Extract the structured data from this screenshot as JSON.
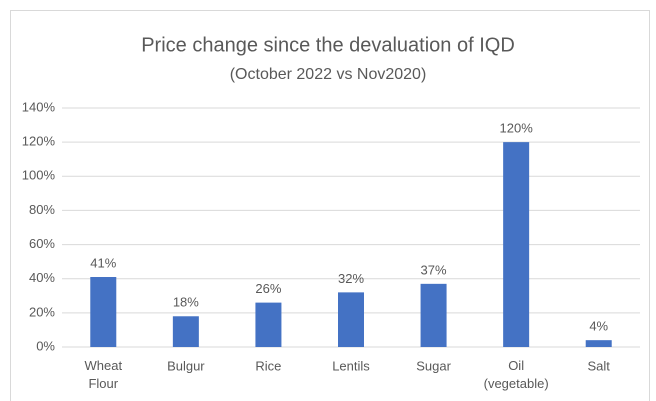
{
  "chart_data": {
    "type": "bar",
    "title": "Price change since the devaluation of IQD",
    "subtitle": "(October 2022 vs Nov2020)",
    "categories": [
      "Wheat Flour",
      "Bulgur",
      "Rice",
      "Lentils",
      "Sugar",
      "Oil (vegetable)",
      "Salt"
    ],
    "values": [
      41,
      18,
      26,
      32,
      37,
      120,
      4
    ],
    "value_labels": [
      "41%",
      "18%",
      "26%",
      "32%",
      "37%",
      "120%",
      "4%"
    ],
    "color": "#4472c4",
    "ylim": [
      0,
      140
    ],
    "yticks": [
      {
        "value": 0,
        "label": "0%"
      },
      {
        "value": 20,
        "label": "20%"
      },
      {
        "value": 40,
        "label": "40%"
      },
      {
        "value": 60,
        "label": "60%"
      },
      {
        "value": 80,
        "label": "80%"
      },
      {
        "value": 100,
        "label": "100%"
      },
      {
        "value": 120,
        "label": "120%"
      },
      {
        "value": 140,
        "label": "140%"
      }
    ],
    "grid": true
  }
}
